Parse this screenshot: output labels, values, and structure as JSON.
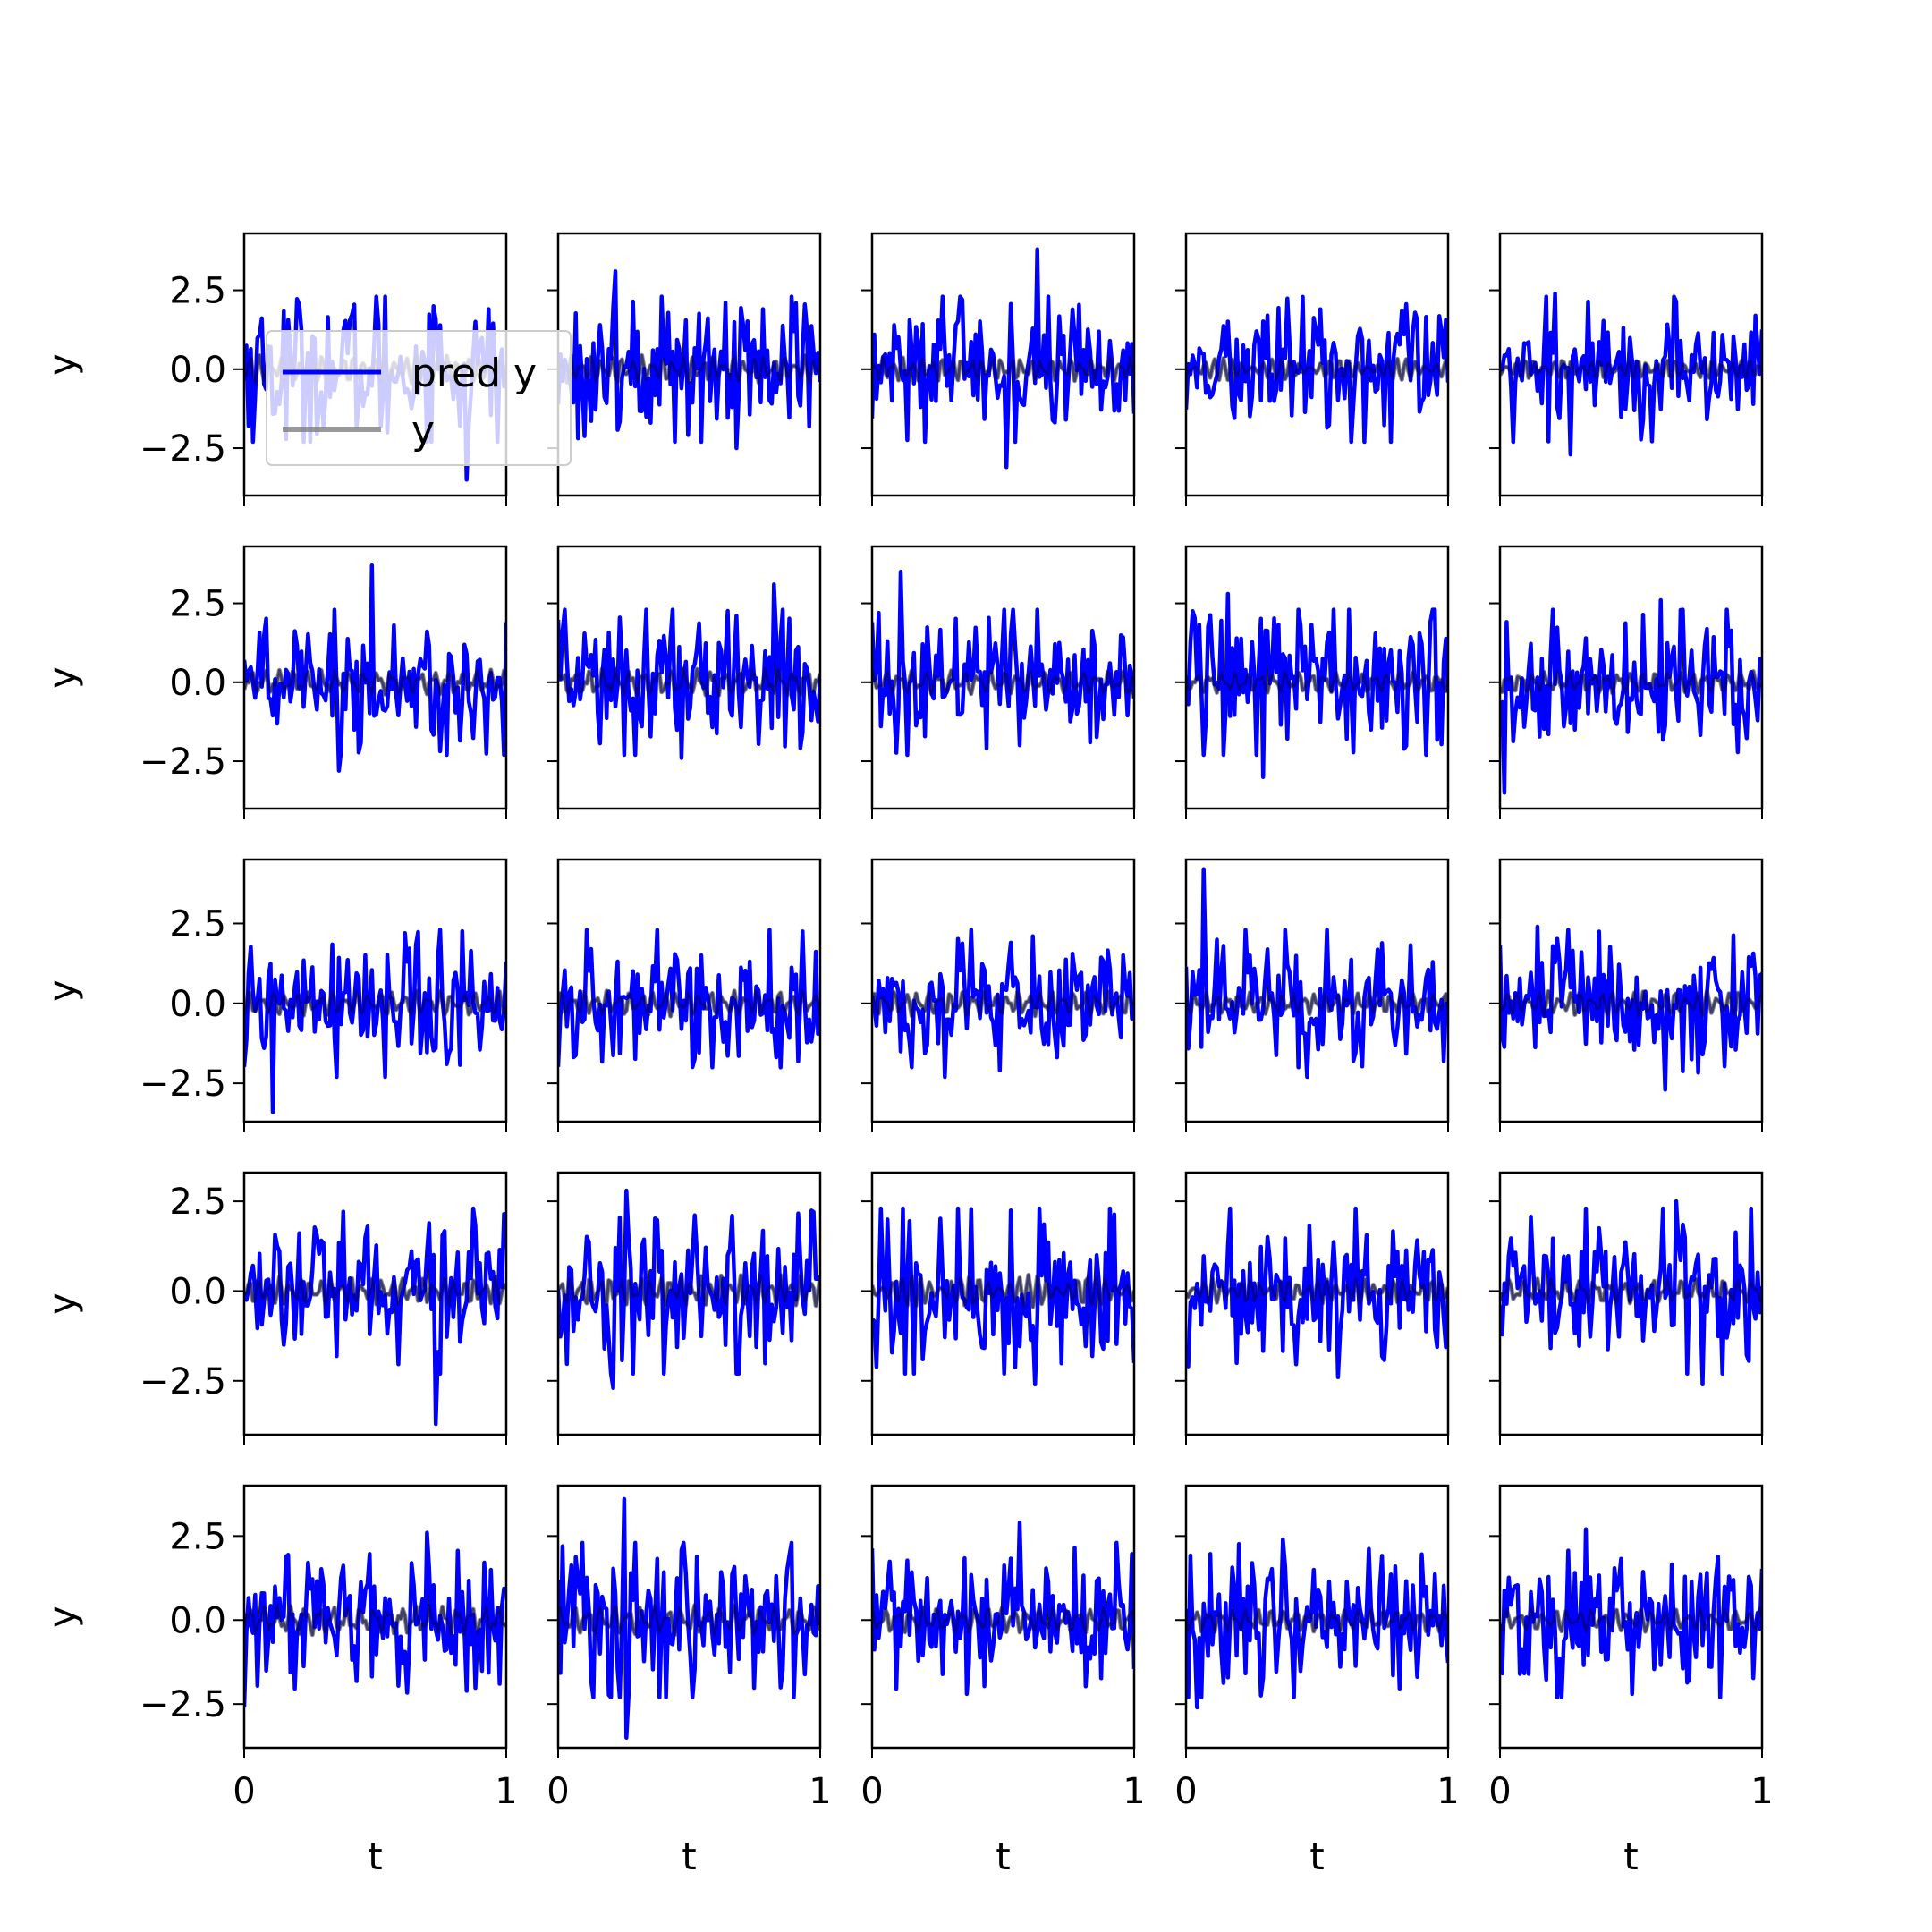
{
  "chart_data": {
    "type": "line",
    "layout": "5x5 grid of subplots",
    "series_names": [
      "pred y",
      "y"
    ],
    "colors": {
      "pred": "#0000ff",
      "true": "#808080",
      "axes": "#000000"
    },
    "xlabel": "t",
    "ylabel": "y",
    "xlim": [
      0,
      1
    ],
    "xticks": [
      0,
      1
    ],
    "xtick_labels": [
      "0",
      "1"
    ],
    "legend": {
      "placement": "upper-left of first subplot",
      "entries": [
        {
          "label": "pred y",
          "color": "#0000ff",
          "opacity": 1
        },
        {
          "label": "y",
          "color": "#808080",
          "opacity": 0.8
        }
      ]
    },
    "rows": [
      {
        "ylim": [
          -4.0,
          4.3
        ],
        "yticks": [
          -2.5,
          0.0,
          2.5
        ],
        "ytick_labels": [
          "−2.5",
          "0.0",
          "2.5"
        ]
      },
      {
        "ylim": [
          -4.0,
          4.3
        ],
        "yticks": [
          -2.5,
          0.0,
          2.5
        ],
        "ytick_labels": [
          "−2.5",
          "0.0",
          "2.5"
        ]
      },
      {
        "ylim": [
          -3.7,
          4.5
        ],
        "yticks": [
          -2.5,
          0.0,
          2.5
        ],
        "ytick_labels": [
          "−2.5",
          "0.0",
          "2.5"
        ]
      },
      {
        "ylim": [
          -4.0,
          3.3
        ],
        "yticks": [
          -2.5,
          0.0,
          2.5
        ],
        "ytick_labels": [
          "−2.5",
          "0.0",
          "2.5"
        ]
      },
      {
        "ylim": [
          -3.8,
          4.0
        ],
        "yticks": [
          -2.5,
          0.0,
          2.5
        ],
        "ytick_labels": [
          "−2.5",
          "0.0",
          "2.5"
        ]
      }
    ],
    "subplots": [
      {
        "row": 0,
        "col": 0,
        "n_points": 120,
        "pred_amp": 1.2,
        "true_amp": 0.45,
        "peak": [
          [
            0.72,
            2.0
          ],
          [
            0.85,
            -3.5
          ]
        ]
      },
      {
        "row": 0,
        "col": 1,
        "n_points": 120,
        "pred_amp": 1.1,
        "true_amp": 0.45,
        "peak": [
          [
            0.22,
            3.1
          ],
          [
            0.68,
            -2.5
          ]
        ]
      },
      {
        "row": 0,
        "col": 2,
        "n_points": 120,
        "pred_amp": 1.1,
        "true_amp": 0.4,
        "peak": [
          [
            0.63,
            3.8
          ],
          [
            0.51,
            -3.1
          ]
        ]
      },
      {
        "row": 0,
        "col": 3,
        "n_points": 120,
        "pred_amp": 1.0,
        "true_amp": 0.35,
        "peak": [
          [
            0.51,
            1.9
          ],
          [
            0.63,
            -2.3
          ]
        ]
      },
      {
        "row": 0,
        "col": 4,
        "n_points": 120,
        "pred_amp": 1.0,
        "true_amp": 0.35,
        "peak": [
          [
            0.21,
            2.4
          ],
          [
            0.27,
            -2.7
          ]
        ]
      },
      {
        "row": 1,
        "col": 0,
        "n_points": 120,
        "pred_amp": 1.0,
        "true_amp": 0.4,
        "peak": [
          [
            0.49,
            3.7
          ],
          [
            0.36,
            -2.8
          ]
        ]
      },
      {
        "row": 1,
        "col": 1,
        "n_points": 120,
        "pred_amp": 1.2,
        "true_amp": 0.45,
        "peak": [
          [
            0.82,
            3.1
          ],
          [
            0.47,
            -2.4
          ]
        ]
      },
      {
        "row": 1,
        "col": 2,
        "n_points": 120,
        "pred_amp": 1.0,
        "true_amp": 0.4,
        "peak": [
          [
            0.11,
            3.5
          ],
          [
            0.83,
            -1.9
          ]
        ]
      },
      {
        "row": 1,
        "col": 3,
        "n_points": 120,
        "pred_amp": 1.1,
        "true_amp": 0.35,
        "peak": [
          [
            0.16,
            2.8
          ],
          [
            0.29,
            -3.0
          ]
        ]
      },
      {
        "row": 1,
        "col": 4,
        "n_points": 120,
        "pred_amp": 1.0,
        "true_amp": 0.35,
        "peak": [
          [
            0.61,
            2.6
          ],
          [
            0.02,
            -3.5
          ]
        ]
      },
      {
        "row": 2,
        "col": 0,
        "n_points": 120,
        "pred_amp": 1.0,
        "true_amp": 0.4,
        "peak": [
          [
            0.61,
            2.2
          ],
          [
            0.11,
            -3.4
          ]
        ]
      },
      {
        "row": 2,
        "col": 1,
        "n_points": 120,
        "pred_amp": 1.0,
        "true_amp": 0.4,
        "peak": [
          [
            0.81,
            2.3
          ],
          [
            0.85,
            -2.0
          ]
        ]
      },
      {
        "row": 2,
        "col": 2,
        "n_points": 120,
        "pred_amp": 1.0,
        "true_amp": 0.4,
        "peak": [
          [
            0.61,
            2.1
          ],
          [
            0.49,
            -2.1
          ]
        ]
      },
      {
        "row": 2,
        "col": 3,
        "n_points": 120,
        "pred_amp": 1.1,
        "true_amp": 0.35,
        "peak": [
          [
            0.07,
            4.2
          ],
          [
            0.43,
            -2.0
          ]
        ]
      },
      {
        "row": 2,
        "col": 4,
        "n_points": 120,
        "pred_amp": 1.1,
        "true_amp": 0.4,
        "peak": [
          [
            0.14,
            2.4
          ],
          [
            0.63,
            -2.7
          ]
        ]
      },
      {
        "row": 3,
        "col": 0,
        "n_points": 120,
        "pred_amp": 1.0,
        "true_amp": 0.4,
        "peak": [
          [
            0.47,
            1.8
          ],
          [
            0.73,
            -3.7
          ]
        ]
      },
      {
        "row": 3,
        "col": 1,
        "n_points": 120,
        "pred_amp": 1.1,
        "true_amp": 0.45,
        "peak": [
          [
            0.26,
            2.8
          ],
          [
            0.21,
            -2.7
          ]
        ]
      },
      {
        "row": 3,
        "col": 2,
        "n_points": 120,
        "pred_amp": 1.1,
        "true_amp": 0.45,
        "peak": [
          [
            0.33,
            2.3
          ],
          [
            0.62,
            -2.6
          ]
        ]
      },
      {
        "row": 3,
        "col": 3,
        "n_points": 120,
        "pred_amp": 1.0,
        "true_amp": 0.35,
        "peak": [
          [
            0.65,
            2.3
          ],
          [
            0.58,
            -2.4
          ]
        ]
      },
      {
        "row": 3,
        "col": 4,
        "n_points": 120,
        "pred_amp": 1.0,
        "true_amp": 0.35,
        "peak": [
          [
            0.67,
            2.5
          ],
          [
            0.77,
            -2.6
          ]
        ]
      },
      {
        "row": 4,
        "col": 0,
        "n_points": 120,
        "pred_amp": 1.1,
        "true_amp": 0.45,
        "peak": [
          [
            0.7,
            2.6
          ],
          [
            0.0,
            -2.6
          ]
        ]
      },
      {
        "row": 4,
        "col": 1,
        "n_points": 120,
        "pred_amp": 1.2,
        "true_amp": 0.45,
        "peak": [
          [
            0.25,
            3.6
          ],
          [
            0.26,
            -3.5
          ]
        ]
      },
      {
        "row": 4,
        "col": 2,
        "n_points": 120,
        "pred_amp": 1.0,
        "true_amp": 0.4,
        "peak": [
          [
            0.56,
            2.9
          ],
          [
            0.36,
            -2.2
          ]
        ]
      },
      {
        "row": 4,
        "col": 3,
        "n_points": 120,
        "pred_amp": 1.0,
        "true_amp": 0.35,
        "peak": [
          [
            0.37,
            2.4
          ],
          [
            0.04,
            -2.6
          ]
        ]
      },
      {
        "row": 4,
        "col": 4,
        "n_points": 120,
        "pred_amp": 1.0,
        "true_amp": 0.35,
        "peak": [
          [
            0.33,
            2.7
          ],
          [
            0.5,
            -2.2
          ]
        ]
      }
    ]
  }
}
